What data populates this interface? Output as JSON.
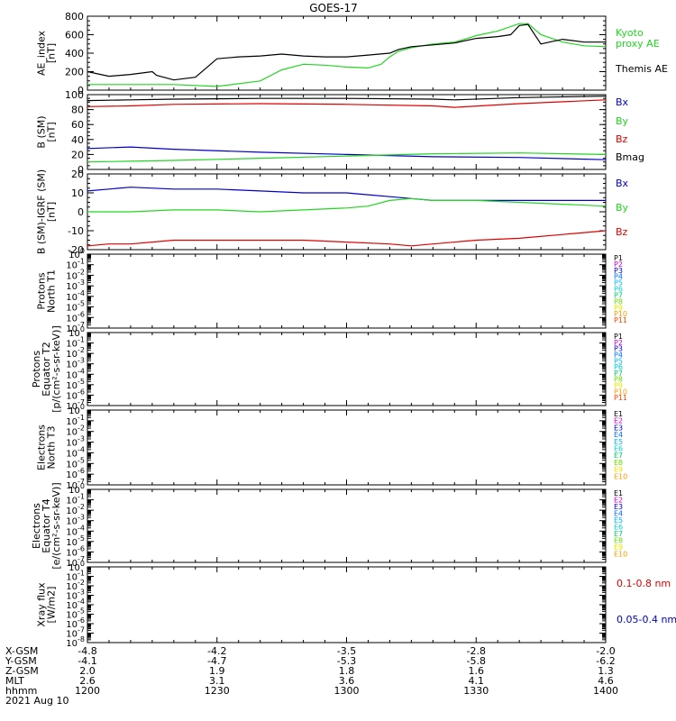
{
  "title": "GOES-17",
  "colors": {
    "axis": "#000000",
    "black": "#000000",
    "red": "#e00000",
    "green": "#22d622",
    "blue": "#0000c8",
    "channels": [
      "#000000",
      "#cc00cc",
      "#0000c8",
      "#0070ff",
      "#00b4ff",
      "#00cccc",
      "#00cc66",
      "#66dd00",
      "#e6e600",
      "#ff9900",
      "#ff4400",
      "#cc0000"
    ]
  },
  "time_axis": {
    "start_hhmm": "1200",
    "end_hhmm": "1400",
    "xlim_minutes": [
      0,
      120
    ],
    "major_ticks_minutes": [
      0,
      30,
      60,
      90,
      120
    ],
    "minor_step_minutes": 5
  },
  "chart_data": [
    {
      "type": "line",
      "id": "ae",
      "ylabel": [
        "AE_index",
        "[nT]"
      ],
      "ylim": [
        0,
        800
      ],
      "yticks": [
        0,
        200,
        400,
        600,
        800
      ],
      "series": [
        {
          "name": "Kyoto\nproxy AE",
          "legend_lines": [
            "Kyoto",
            "proxy AE"
          ],
          "color_key": "green",
          "x": [
            0,
            10,
            20,
            30,
            40,
            45,
            50,
            55,
            60,
            65,
            68,
            70,
            72,
            75,
            80,
            85,
            88,
            90,
            95,
            100,
            102,
            105,
            110,
            115,
            120
          ],
          "y": [
            60,
            60,
            60,
            40,
            100,
            220,
            280,
            270,
            250,
            240,
            280,
            360,
            420,
            460,
            500,
            520,
            560,
            590,
            640,
            720,
            720,
            600,
            520,
            480,
            470
          ]
        },
        {
          "name": "Themis AE",
          "legend_lines": [
            "Themis AE"
          ],
          "color_key": "black",
          "x": [
            0,
            5,
            10,
            15,
            16,
            20,
            25,
            30,
            35,
            40,
            45,
            50,
            55,
            60,
            65,
            70,
            72,
            75,
            80,
            85,
            90,
            95,
            98,
            100,
            102,
            105,
            107,
            110,
            115,
            120
          ],
          "y": [
            200,
            150,
            170,
            200,
            160,
            110,
            140,
            340,
            360,
            370,
            390,
            370,
            360,
            360,
            380,
            400,
            440,
            470,
            490,
            510,
            560,
            580,
            600,
            700,
            710,
            500,
            520,
            550,
            520,
            520
          ]
        }
      ]
    },
    {
      "type": "line",
      "id": "b_sm",
      "ylabel": [
        "B (SM)",
        "[nT]"
      ],
      "ylim": [
        0,
        100
      ],
      "yticks": [
        0,
        20,
        40,
        60,
        80,
        100
      ],
      "series": [
        {
          "name": "Bx",
          "legend_lines": [
            "Bx"
          ],
          "color_key": "blue",
          "x": [
            0,
            10,
            20,
            40,
            60,
            80,
            100,
            120
          ],
          "y": [
            28,
            30,
            27,
            23,
            20,
            17,
            16,
            13
          ]
        },
        {
          "name": "By",
          "legend_lines": [
            "By"
          ],
          "color_key": "green",
          "x": [
            0,
            10,
            20,
            40,
            60,
            80,
            100,
            120
          ],
          "y": [
            10,
            11,
            12,
            15,
            18,
            21,
            22,
            20
          ]
        },
        {
          "name": "Bz",
          "legend_lines": [
            "Bz"
          ],
          "color_key": "red",
          "x": [
            0,
            10,
            20,
            40,
            60,
            80,
            85,
            100,
            120
          ],
          "y": [
            84,
            85,
            87,
            88,
            87,
            85,
            83,
            88,
            93
          ]
        },
        {
          "name": "Bmag",
          "legend_lines": [
            "Bmag"
          ],
          "color_key": "black",
          "x": [
            0,
            10,
            20,
            40,
            60,
            80,
            85,
            100,
            120
          ],
          "y": [
            92,
            93,
            94,
            95,
            95,
            94,
            93,
            96,
            98
          ]
        }
      ]
    },
    {
      "type": "line",
      "id": "b_igrf",
      "ylabel": [
        "B (SM)-IGRF (SM)",
        "[nT]"
      ],
      "ylim": [
        -20,
        20
      ],
      "yticks": [
        -20,
        -10,
        0,
        10,
        20
      ],
      "series": [
        {
          "name": "Bx",
          "legend_lines": [
            "Bx"
          ],
          "color_key": "blue",
          "x": [
            0,
            5,
            10,
            20,
            30,
            40,
            50,
            60,
            65,
            70,
            75,
            80,
            90,
            100,
            110,
            120
          ],
          "y": [
            11,
            12,
            13,
            12,
            12,
            11,
            10,
            10,
            9,
            8,
            7,
            6,
            6,
            6,
            6,
            6
          ]
        },
        {
          "name": "By",
          "legend_lines": [
            "By"
          ],
          "color_key": "green",
          "x": [
            0,
            10,
            20,
            30,
            40,
            50,
            60,
            65,
            70,
            75,
            80,
            90,
            100,
            110,
            120
          ],
          "y": [
            0,
            0,
            1,
            1,
            0,
            1,
            2,
            3,
            6,
            7,
            6,
            6,
            5,
            4,
            3
          ]
        },
        {
          "name": "Bz",
          "legend_lines": [
            "Bz"
          ],
          "color_key": "red",
          "x": [
            0,
            5,
            10,
            15,
            20,
            30,
            40,
            50,
            60,
            70,
            75,
            80,
            90,
            100,
            110,
            120
          ],
          "y": [
            -18,
            -17,
            -17,
            -16,
            -15,
            -15,
            -15,
            -15,
            -16,
            -17,
            -18,
            -17,
            -15,
            -14,
            -12,
            -10
          ]
        }
      ]
    },
    {
      "type": "line",
      "id": "p_north",
      "log": true,
      "ylabel": [
        "Protons",
        "North T1"
      ],
      "ylim_exp": [
        -7,
        0
      ],
      "channels": [
        "P1",
        "P2",
        "P3",
        "P4",
        "P5",
        "P6",
        "P7",
        "P8",
        "P9",
        "P10",
        "P11"
      ],
      "series": []
    },
    {
      "type": "line",
      "id": "p_equator",
      "log": true,
      "ylabel": [
        "Protons",
        "Equator T2",
        "[p/(cm²-s-sr-keV)]"
      ],
      "ylim_exp": [
        -7,
        0
      ],
      "channels": [
        "P1",
        "P2",
        "P3",
        "P4",
        "P5",
        "P6",
        "P7",
        "P8",
        "P9",
        "P10",
        "P11"
      ],
      "series": []
    },
    {
      "type": "line",
      "id": "e_north",
      "log": true,
      "ylabel": [
        "Electrons",
        "North T3"
      ],
      "ylim_exp": [
        -7,
        0
      ],
      "channels": [
        "E1",
        "E2",
        "E3",
        "E4",
        "E5",
        "E6",
        "E7",
        "E8",
        "E9",
        "E10"
      ],
      "series": []
    },
    {
      "type": "line",
      "id": "e_equator",
      "log": true,
      "ylabel": [
        "Electrons",
        "Equator T4",
        "[e/(cm²-s-sr-keV)]"
      ],
      "ylim_exp": [
        -7,
        0
      ],
      "channels": [
        "E1",
        "E2",
        "E3",
        "E4",
        "E5",
        "E6",
        "E7",
        "E8",
        "E9",
        "E10"
      ],
      "series": []
    },
    {
      "type": "line",
      "id": "xray",
      "log": true,
      "ylabel": [
        "Xray flux",
        "[W/m2]"
      ],
      "ylim_exp": [
        -8,
        0
      ],
      "legend": [
        {
          "label": "0.1-0.8 nm",
          "color_key": "red"
        },
        {
          "label": "0.05-0.4 nm",
          "color_key": "blue"
        }
      ],
      "series": []
    }
  ],
  "ephemeris": {
    "rows": [
      {
        "label": "X-GSM",
        "values": [
          "-4.8",
          "-4.2",
          "-3.5",
          "-2.8",
          "-2.0"
        ]
      },
      {
        "label": "Y-GSM",
        "values": [
          "-4.1",
          "-4.7",
          "-5.3",
          "-5.8",
          "-6.2"
        ]
      },
      {
        "label": "Z-GSM",
        "values": [
          "2.0",
          "1.9",
          "1.8",
          "1.6",
          "1.3"
        ]
      },
      {
        "label": "MLT",
        "values": [
          "2.6",
          "3.1",
          "3.6",
          "4.1",
          "4.6"
        ]
      },
      {
        "label": "hhmm",
        "values": [
          "1200",
          "1230",
          "1300",
          "1330",
          "1400"
        ]
      }
    ],
    "date": "2021 Aug 10"
  }
}
